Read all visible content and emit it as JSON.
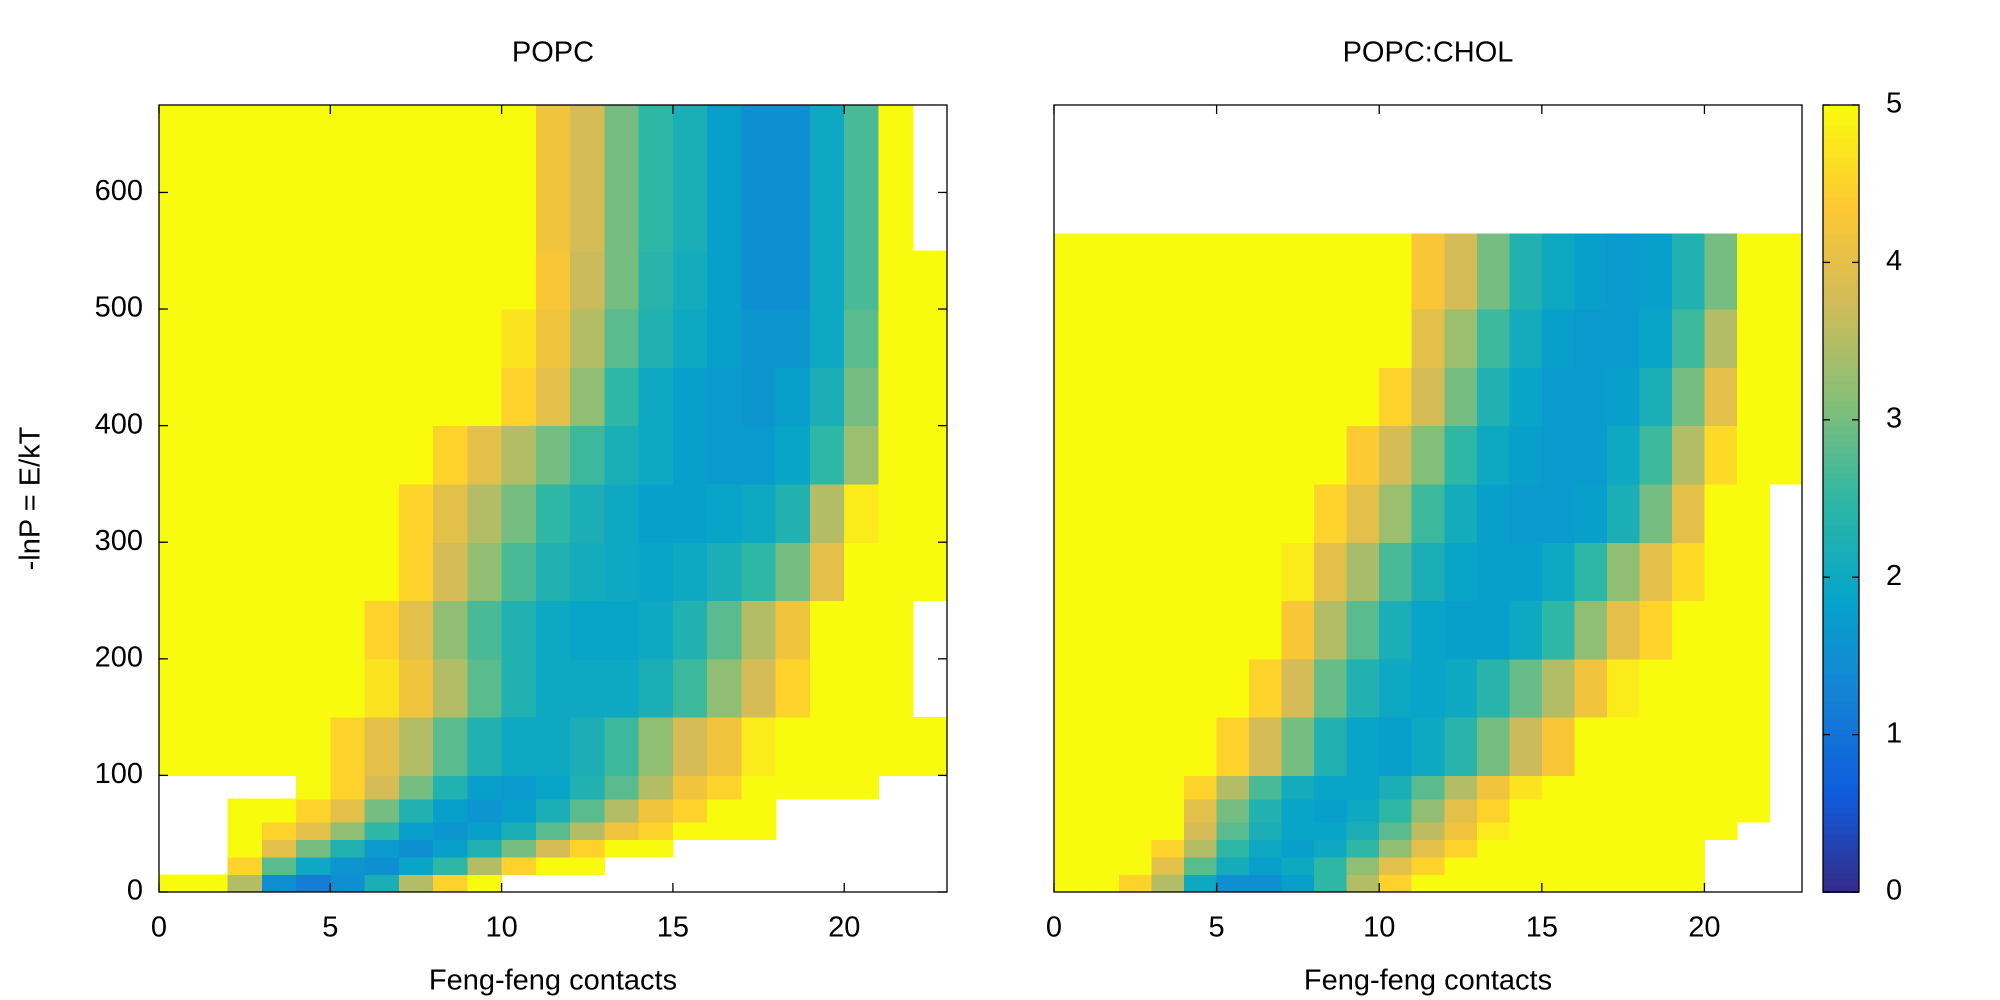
{
  "chart_data": [
    {
      "type": "heatmap",
      "title": "POPC",
      "xlabel": "Feng-feng contacts",
      "ylabel": "-lnP = E/kT",
      "xlim": [
        0,
        23
      ],
      "ylim": [
        0,
        675
      ],
      "xticks": [
        0,
        5,
        10,
        15,
        20
      ],
      "yticks": [
        0,
        100,
        200,
        300,
        400,
        500,
        600
      ],
      "x_edges": [
        0,
        1,
        2,
        3,
        4,
        5,
        6,
        7,
        8,
        9,
        10,
        11,
        12,
        13,
        14,
        15,
        16,
        17,
        18,
        19,
        20,
        21,
        22,
        23
      ],
      "y_edges": [
        0,
        15,
        30,
        45,
        60,
        80,
        100,
        150,
        200,
        250,
        300,
        350,
        400,
        450,
        500,
        550,
        600,
        675
      ],
      "z": [
        [
          5,
          5,
          3.5,
          1.5,
          1.2,
          1.5,
          2.2,
          3.5,
          4.5,
          5,
          null,
          null,
          null,
          null,
          null,
          null,
          null,
          null,
          null,
          null,
          null,
          null,
          null
        ],
        [
          null,
          null,
          4.5,
          2.8,
          2,
          1.6,
          1.5,
          1.9,
          2.5,
          3.5,
          4.5,
          5,
          5,
          null,
          null,
          null,
          null,
          null,
          null,
          null,
          null,
          null,
          null
        ],
        [
          null,
          null,
          5,
          4,
          3,
          2.3,
          1.7,
          1.5,
          1.8,
          2.3,
          3,
          3.8,
          4.5,
          5,
          5,
          null,
          null,
          null,
          null,
          null,
          null,
          null,
          null
        ],
        [
          null,
          null,
          5,
          4.5,
          4,
          3.2,
          2.5,
          1.8,
          1.6,
          1.8,
          2.2,
          2.8,
          3.5,
          4.2,
          4.5,
          5,
          5,
          5,
          null,
          null,
          null,
          null,
          null
        ],
        [
          null,
          null,
          5,
          5,
          4.5,
          4,
          3,
          2.3,
          1.8,
          1.6,
          1.8,
          2.2,
          2.8,
          3.5,
          4.2,
          4.5,
          5,
          5,
          null,
          null,
          null,
          null,
          null
        ],
        [
          null,
          null,
          null,
          null,
          5,
          4.5,
          3.8,
          3,
          2.3,
          1.8,
          1.7,
          1.9,
          2.3,
          2.8,
          3.5,
          4.2,
          4.5,
          5,
          5,
          5,
          5,
          null,
          null
        ],
        [
          5,
          5,
          5,
          5,
          5,
          4.5,
          4,
          3.5,
          2.8,
          2.3,
          2,
          2,
          2.2,
          2.6,
          3.2,
          3.8,
          4.2,
          4.8,
          5,
          5,
          5,
          5,
          5
        ],
        [
          5,
          5,
          5,
          5,
          5,
          5,
          4.7,
          4.2,
          3.5,
          2.8,
          2.3,
          2,
          2,
          2,
          2.2,
          2.6,
          3.2,
          3.8,
          4.5,
          5,
          5,
          5,
          null
        ],
        [
          5,
          5,
          5,
          5,
          5,
          5,
          4.5,
          4,
          3.2,
          2.7,
          2.3,
          2,
          1.9,
          1.9,
          2,
          2.3,
          2.8,
          3.5,
          4.2,
          5,
          5,
          5,
          null
        ],
        [
          5,
          5,
          5,
          5,
          5,
          5,
          5,
          4.5,
          3.8,
          3.2,
          2.7,
          2.3,
          2.1,
          2,
          1.9,
          2,
          2.2,
          2.5,
          3,
          4,
          5,
          5,
          5
        ],
        [
          5,
          5,
          5,
          5,
          5,
          5,
          5,
          4.5,
          4,
          3.5,
          3,
          2.5,
          2.2,
          2,
          1.8,
          1.8,
          1.9,
          2,
          2.3,
          3.5,
          4.8,
          5,
          5
        ],
        [
          5,
          5,
          5,
          5,
          5,
          5,
          5,
          5,
          4.5,
          4,
          3.5,
          3,
          2.6,
          2.2,
          2,
          1.8,
          1.7,
          1.7,
          1.9,
          2.5,
          3.3,
          5,
          5
        ],
        [
          5,
          5,
          5,
          5,
          5,
          5,
          5,
          5,
          5,
          5,
          4.5,
          4,
          3.2,
          2.5,
          2,
          1.8,
          1.7,
          1.6,
          1.8,
          2.2,
          3,
          5,
          5
        ],
        [
          5,
          5,
          5,
          5,
          5,
          5,
          5,
          5,
          5,
          5,
          4.7,
          4.2,
          3.5,
          2.8,
          2.3,
          2,
          1.8,
          1.6,
          1.6,
          2,
          2.8,
          5,
          5
        ],
        [
          5,
          5,
          5,
          5,
          5,
          5,
          5,
          5,
          5,
          5,
          5,
          4.3,
          3.7,
          3,
          2.4,
          2.1,
          1.8,
          1.5,
          1.5,
          2,
          2.7,
          5,
          5
        ],
        [
          5,
          5,
          5,
          5,
          5,
          5,
          5,
          5,
          5,
          5,
          5,
          4.2,
          3.8,
          3,
          2.5,
          2.2,
          1.8,
          1.5,
          1.5,
          2,
          2.7,
          5,
          null
        ],
        [
          5,
          5,
          5,
          5,
          5,
          5,
          5,
          5,
          5,
          5,
          5,
          4.2,
          3.8,
          3,
          2.5,
          2.2,
          1.8,
          1.5,
          1.5,
          2,
          2.7,
          5,
          null
        ]
      ]
    },
    {
      "type": "heatmap",
      "title": "POPC:CHOL",
      "xlabel": "Feng-feng contacts",
      "xlim": [
        0,
        23
      ],
      "ylim": [
        0,
        675
      ],
      "xticks": [
        0,
        5,
        10,
        15,
        20
      ],
      "x_edges": [
        0,
        1,
        2,
        3,
        4,
        5,
        6,
        7,
        8,
        9,
        10,
        11,
        12,
        13,
        14,
        15,
        16,
        17,
        18,
        19,
        20,
        21,
        22,
        23
      ],
      "y_edges": [
        0,
        15,
        30,
        45,
        60,
        80,
        100,
        150,
        200,
        250,
        300,
        350,
        400,
        450,
        500,
        565
      ],
      "z": [
        [
          5,
          5,
          4.5,
          3.5,
          2,
          1.5,
          1.5,
          1.8,
          2.5,
          3.5,
          4.5,
          5,
          5,
          5,
          5,
          5,
          5,
          5,
          5,
          5,
          null,
          null,
          null
        ],
        [
          5,
          5,
          5,
          4,
          2.8,
          2.1,
          1.8,
          2,
          2.5,
          3.2,
          4,
          4.5,
          5,
          5,
          5,
          5,
          5,
          5,
          5,
          5,
          null,
          null,
          null
        ],
        [
          5,
          5,
          5,
          4.5,
          3.5,
          2.5,
          2,
          1.8,
          2,
          2.5,
          3.2,
          4,
          4.5,
          5,
          5,
          5,
          5,
          5,
          5,
          5,
          null,
          null,
          null
        ],
        [
          5,
          5,
          5,
          5,
          3.8,
          2.8,
          2.2,
          1.9,
          1.9,
          2.2,
          2.8,
          3.6,
          4.2,
          4.8,
          5,
          5,
          5,
          5,
          5,
          5,
          5,
          null,
          null
        ],
        [
          5,
          5,
          5,
          5,
          4,
          3,
          2.3,
          1.9,
          1.8,
          2,
          2.5,
          3.2,
          4,
          4.5,
          5,
          5,
          5,
          5,
          5,
          5,
          5,
          5,
          null
        ],
        [
          5,
          5,
          5,
          5,
          4.5,
          3.5,
          2.7,
          2.1,
          1.9,
          1.9,
          2.2,
          2.8,
          3.5,
          4.2,
          4.7,
          5,
          5,
          5,
          5,
          5,
          5,
          5,
          null
        ],
        [
          5,
          5,
          5,
          5,
          5,
          4.5,
          3.8,
          3,
          2.3,
          1.9,
          1.8,
          2,
          2.4,
          3,
          3.7,
          4.3,
          5,
          5,
          5,
          5,
          5,
          5,
          null
        ],
        [
          5,
          5,
          5,
          5,
          5,
          5,
          4.5,
          3.8,
          2.9,
          2.3,
          2,
          1.9,
          2,
          2.4,
          2.9,
          3.5,
          4.2,
          4.8,
          5,
          5,
          5,
          5,
          null
        ],
        [
          5,
          5,
          5,
          5,
          5,
          5,
          5,
          4.3,
          3.5,
          2.8,
          2.2,
          1.9,
          1.8,
          1.8,
          2,
          2.5,
          3.2,
          4,
          4.5,
          5,
          5,
          5,
          null
        ],
        [
          5,
          5,
          5,
          5,
          5,
          5,
          5,
          4.8,
          4,
          3.4,
          2.7,
          2.2,
          1.9,
          1.8,
          1.8,
          2,
          2.5,
          3.2,
          4,
          4.6,
          5,
          5,
          null
        ],
        [
          5,
          5,
          5,
          5,
          5,
          5,
          5,
          5,
          4.5,
          4,
          3.3,
          2.6,
          2.1,
          1.8,
          1.7,
          1.7,
          1.8,
          2.2,
          3,
          4,
          5,
          5,
          null
        ],
        [
          5,
          5,
          5,
          5,
          5,
          5,
          5,
          5,
          5,
          4.4,
          3.8,
          3.1,
          2.5,
          2,
          1.8,
          1.7,
          1.7,
          2,
          2.6,
          3.5,
          4.6,
          5,
          5
        ],
        [
          5,
          5,
          5,
          5,
          5,
          5,
          5,
          5,
          5,
          5,
          4.5,
          3.8,
          3,
          2.3,
          1.9,
          1.7,
          1.7,
          1.8,
          2.2,
          3,
          4,
          5,
          5
        ],
        [
          5,
          5,
          5,
          5,
          5,
          5,
          5,
          5,
          5,
          5,
          5,
          4,
          3.3,
          2.6,
          2.1,
          1.8,
          1.7,
          1.7,
          1.9,
          2.6,
          3.5,
          5,
          5
        ],
        [
          5,
          5,
          5,
          5,
          5,
          5,
          5,
          5,
          5,
          5,
          5,
          4.3,
          3.8,
          3,
          2.3,
          2,
          1.8,
          1.7,
          1.8,
          2.3,
          3,
          5,
          5
        ]
      ],
      "colorbar": {
        "clim": [
          0,
          5
        ],
        "ticks": [
          0,
          1,
          2,
          3,
          4,
          5
        ],
        "colors": [
          "#352a87",
          "#0f5cdd",
          "#1481d6",
          "#06a4ca",
          "#2eb7a4",
          "#87bf77",
          "#d1bb59",
          "#fec832",
          "#f9fb0e"
        ]
      }
    }
  ]
}
